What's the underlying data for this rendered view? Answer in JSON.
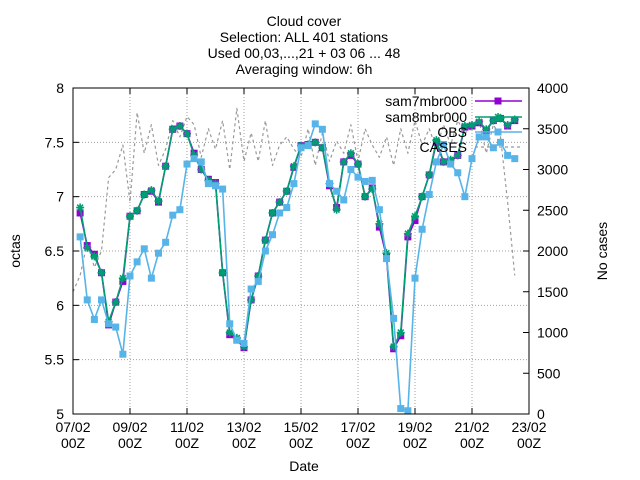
{
  "chart_data": {
    "type": "line",
    "title_lines": [
      "Cloud cover",
      "Selection: ALL    401 stations",
      "Used 00,03,...,21 + 03 06 ... 48",
      "Averaging window:  6h"
    ],
    "xlabel": "Date",
    "ylabel": "octas",
    "y2label": "No cases",
    "xlim": [
      0,
      16
    ],
    "ylim": [
      5,
      8
    ],
    "y2lim": [
      0,
      4000
    ],
    "x_ticks": [
      {
        "x": 0,
        "line1": "07/02",
        "line2": "00Z"
      },
      {
        "x": 2,
        "line1": "09/02",
        "line2": "00Z"
      },
      {
        "x": 4,
        "line1": "11/02",
        "line2": "00Z"
      },
      {
        "x": 6,
        "line1": "13/02",
        "line2": "00Z"
      },
      {
        "x": 8,
        "line1": "15/02",
        "line2": "00Z"
      },
      {
        "x": 10,
        "line1": "17/02",
        "line2": "00Z"
      },
      {
        "x": 12,
        "line1": "19/02",
        "line2": "00Z"
      },
      {
        "x": 14,
        "line1": "21/02",
        "line2": "00Z"
      },
      {
        "x": 16,
        "line1": "23/02",
        "line2": "00Z"
      }
    ],
    "y_ticks": [
      "5",
      "5.5",
      "6",
      "6.5",
      "7",
      "7.5",
      "8"
    ],
    "y2_ticks": [
      "0",
      "500",
      "1000",
      "1500",
      "2000",
      "2500",
      "3000",
      "3500",
      "4000"
    ],
    "grid": true,
    "legend_position": "top-right",
    "series": [
      {
        "name": "sam7mbr000",
        "color": "#9400d3",
        "marker": "square",
        "axis": "y",
        "x": [
          0.25,
          0.5,
          0.75,
          1,
          1.25,
          1.5,
          1.75,
          2,
          2.25,
          2.5,
          2.75,
          3,
          3.25,
          3.5,
          3.75,
          4,
          4.25,
          4.5,
          4.75,
          5,
          5.25,
          5.5,
          5.75,
          6,
          6.25,
          6.5,
          6.75,
          7,
          7.25,
          7.5,
          7.75,
          8,
          8.25,
          8.5,
          8.75,
          9,
          9.25,
          9.5,
          9.75,
          10,
          10.25,
          10.5,
          10.75,
          11,
          11.25,
          11.5,
          11.75,
          12,
          12.25,
          12.5,
          12.75,
          13,
          13.25,
          13.5,
          13.75,
          14,
          14.25,
          14.5,
          14.75,
          15,
          15.25,
          15.5
        ],
        "values": [
          6.85,
          6.55,
          6.47,
          6.3,
          5.82,
          6.03,
          6.22,
          6.82,
          6.87,
          7.02,
          7.05,
          6.95,
          7.28,
          7.62,
          7.65,
          7.58,
          7.4,
          7.25,
          7.16,
          7.13,
          6.3,
          5.73,
          5.68,
          5.61,
          6.05,
          6.27,
          6.6,
          6.85,
          6.95,
          7.05,
          7.27,
          7.47,
          7.48,
          7.5,
          7.45,
          7.1,
          6.9,
          7.32,
          7.38,
          7.3,
          7.0,
          7.08,
          6.72,
          6.45,
          5.6,
          5.72,
          6.63,
          6.78,
          7.0,
          7.2,
          7.5,
          7.32,
          7.33,
          7.38,
          7.64,
          7.65,
          7.68,
          7.61,
          7.7,
          7.72,
          7.65,
          7.7
        ]
      },
      {
        "name": "sam8mbr000",
        "color": "#009e73",
        "marker": "star",
        "axis": "y",
        "x": [
          0.25,
          0.5,
          0.75,
          1,
          1.25,
          1.5,
          1.75,
          2,
          2.25,
          2.5,
          2.75,
          3,
          3.25,
          3.5,
          3.75,
          4,
          4.25,
          4.5,
          4.75,
          5,
          5.25,
          5.5,
          5.75,
          6,
          6.25,
          6.5,
          6.75,
          7,
          7.25,
          7.5,
          7.75,
          8,
          8.25,
          8.5,
          8.75,
          9,
          9.25,
          9.5,
          9.75,
          10,
          10.25,
          10.5,
          10.75,
          11,
          11.25,
          11.5,
          11.75,
          12,
          12.25,
          12.5,
          12.75,
          13,
          13.25,
          13.5,
          13.75,
          14,
          14.25,
          14.5,
          14.75,
          15,
          15.25,
          15.5
        ],
        "values": [
          6.9,
          6.53,
          6.45,
          6.3,
          5.85,
          6.03,
          6.25,
          6.82,
          6.87,
          7.02,
          7.06,
          6.96,
          7.28,
          7.62,
          7.65,
          7.58,
          7.38,
          7.25,
          7.15,
          7.12,
          6.3,
          5.75,
          5.7,
          5.62,
          6.05,
          6.27,
          6.6,
          6.85,
          6.95,
          7.05,
          7.28,
          7.47,
          7.48,
          7.5,
          7.45,
          7.12,
          6.88,
          7.32,
          7.4,
          7.3,
          7.0,
          7.07,
          6.75,
          6.48,
          5.62,
          5.75,
          6.66,
          6.82,
          7.0,
          7.2,
          7.52,
          7.32,
          7.34,
          7.38,
          7.65,
          7.66,
          7.69,
          7.62,
          7.7,
          7.72,
          7.66,
          7.71
        ]
      },
      {
        "name": "OBS",
        "color": "#56b4e9",
        "marker": "square",
        "axis": "y",
        "x": [
          0.25,
          0.5,
          0.75,
          1,
          1.25,
          1.5,
          1.75,
          2,
          2.25,
          2.5,
          2.75,
          3,
          3.25,
          3.5,
          3.75,
          4,
          4.25,
          4.5,
          4.75,
          5,
          5.25,
          5.5,
          5.75,
          6,
          6.25,
          6.5,
          6.75,
          7,
          7.25,
          7.5,
          7.75,
          8,
          8.25,
          8.5,
          8.75,
          9,
          9.25,
          9.5,
          9.75,
          10,
          10.25,
          10.5,
          10.75,
          11,
          11.25,
          11.5,
          11.75,
          12,
          12.25,
          12.5,
          12.75,
          13,
          13.25,
          13.5,
          13.75,
          14,
          14.25,
          14.5,
          14.75,
          15,
          15.25,
          15.5
        ],
        "values": [
          6.63,
          6.05,
          5.87,
          6.05,
          5.83,
          5.8,
          5.55,
          6.27,
          6.4,
          6.52,
          6.25,
          6.48,
          6.58,
          6.83,
          6.88,
          7.3,
          7.35,
          7.32,
          7.12,
          7.1,
          7.07,
          5.83,
          5.68,
          5.65,
          6.15,
          6.22,
          6.5,
          6.65,
          6.85,
          6.9,
          7.12,
          7.45,
          7.47,
          7.67,
          7.62,
          7.12,
          7.05,
          6.97,
          7.25,
          7.18,
          7.14,
          7.15,
          6.88,
          6.43,
          5.88,
          5.05,
          5.03,
          6.25,
          6.7,
          7.02,
          7.32,
          7.48,
          7.3,
          7.22,
          7.0,
          7.35,
          7.55,
          7.55,
          7.45,
          7.5,
          7.38,
          7.35
        ]
      },
      {
        "name": "CASES",
        "color": "#999999",
        "dashed": true,
        "axis": "y2",
        "x": [
          0,
          0.25,
          0.5,
          0.75,
          1,
          1.25,
          1.5,
          1.75,
          2,
          2.25,
          2.5,
          2.75,
          3,
          3.25,
          3.5,
          3.75,
          4,
          4.25,
          4.5,
          4.75,
          5,
          5.25,
          5.5,
          5.75,
          6,
          6.25,
          6.5,
          6.75,
          7,
          7.25,
          7.5,
          7.75,
          8,
          8.25,
          8.5,
          8.75,
          9,
          9.25,
          9.5,
          9.75,
          10,
          10.25,
          10.5,
          10.75,
          11,
          11.25,
          11.5,
          11.75,
          12,
          12.25,
          12.5,
          12.75,
          13,
          13.25,
          13.5,
          13.75,
          14,
          14.25,
          14.5,
          14.75,
          15,
          15.25,
          15.5
        ],
        "values": [
          1500,
          1700,
          2100,
          1800,
          2000,
          2900,
          3000,
          3300,
          2600,
          3700,
          3200,
          3550,
          3050,
          3250,
          3600,
          3400,
          3650,
          3550,
          3150,
          3500,
          3250,
          3600,
          3000,
          3750,
          3100,
          3450,
          3100,
          3600,
          3050,
          3300,
          3400,
          3250,
          3150,
          3500,
          3050,
          3450,
          3100,
          3350,
          3200,
          3550,
          3100,
          3500,
          3300,
          3150,
          3400,
          3050,
          3500,
          3200,
          3600,
          3300,
          3500,
          3250,
          3550,
          3300,
          3600,
          3450,
          3500,
          3600,
          3200,
          3550,
          3400,
          2600,
          1700
        ]
      }
    ]
  }
}
